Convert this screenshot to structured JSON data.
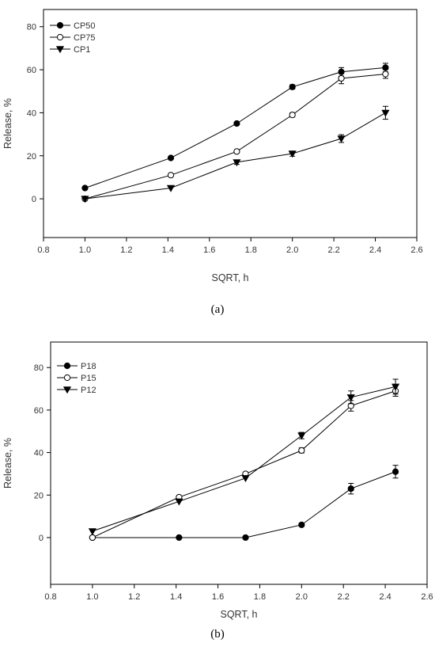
{
  "chart_data": [
    {
      "type": "line",
      "panel_label": "(a)",
      "xlabel": "SQRT, h",
      "ylabel": "Release, %",
      "xlim": [
        0.8,
        2.6
      ],
      "ylim": [
        -18,
        88
      ],
      "xticks": [
        0.8,
        1.0,
        1.2,
        1.4,
        1.6,
        1.8,
        2.0,
        2.2,
        2.4,
        2.6
      ],
      "yticks": [
        0,
        20,
        40,
        60,
        80
      ],
      "x_tick_labels": [
        "0.8",
        "1.0",
        "1.2",
        "1.4",
        "1.6",
        "1.8",
        "2.0",
        "2.2",
        "2.4",
        "2.6"
      ],
      "y_tick_labels": [
        "0",
        "20",
        "40",
        "60",
        "80"
      ],
      "legend": "top-left",
      "grid": false,
      "x": [
        1.0,
        1.414,
        1.732,
        2.0,
        2.236,
        2.449
      ],
      "series": [
        {
          "name": "CP50",
          "marker": "filled-circle",
          "values": [
            5,
            19,
            35,
            52,
            59,
            61
          ],
          "errors": [
            0,
            0,
            0,
            1,
            2,
            2
          ]
        },
        {
          "name": "CP75",
          "marker": "open-circle",
          "values": [
            0,
            11,
            22,
            39,
            56,
            58
          ],
          "errors": [
            0,
            0,
            0,
            1,
            2.5,
            2
          ]
        },
        {
          "name": "CP1",
          "marker": "filled-triangle-down",
          "values": [
            0,
            5,
            17,
            21,
            28,
            40
          ],
          "errors": [
            0,
            0,
            1,
            1.2,
            1.8,
            3
          ]
        }
      ]
    },
    {
      "type": "line",
      "panel_label": "(b)",
      "xlabel": "SQRT, h",
      "ylabel": "Release, %",
      "xlim": [
        0.8,
        2.6
      ],
      "ylim": [
        -22,
        92
      ],
      "xticks": [
        0.8,
        1.0,
        1.2,
        1.4,
        1.6,
        1.8,
        2.0,
        2.2,
        2.4,
        2.6
      ],
      "yticks": [
        0,
        20,
        40,
        60,
        80
      ],
      "x_tick_labels": [
        "0.8",
        "1.0",
        "1.2",
        "1.4",
        "1.6",
        "1.8",
        "2.0",
        "2.2",
        "2.4",
        "2.6"
      ],
      "y_tick_labels": [
        "0",
        "20",
        "40",
        "60",
        "80"
      ],
      "legend": "top-left",
      "grid": false,
      "x": [
        1.0,
        1.414,
        1.732,
        2.0,
        2.236,
        2.449
      ],
      "series": [
        {
          "name": "P18",
          "marker": "filled-circle",
          "values": [
            0,
            0,
            0,
            6,
            23,
            31
          ],
          "errors": [
            0,
            0,
            0,
            0.8,
            2.5,
            3
          ]
        },
        {
          "name": "P15",
          "marker": "open-circle",
          "values": [
            0,
            19,
            30,
            41,
            62,
            69
          ],
          "errors": [
            0,
            0,
            0,
            1.2,
            2.5,
            2.5
          ]
        },
        {
          "name": "P12",
          "marker": "filled-triangle-down",
          "values": [
            3,
            17,
            28,
            48,
            66,
            71
          ],
          "errors": [
            0,
            0,
            0,
            1.5,
            3,
            3.5
          ]
        }
      ]
    }
  ]
}
